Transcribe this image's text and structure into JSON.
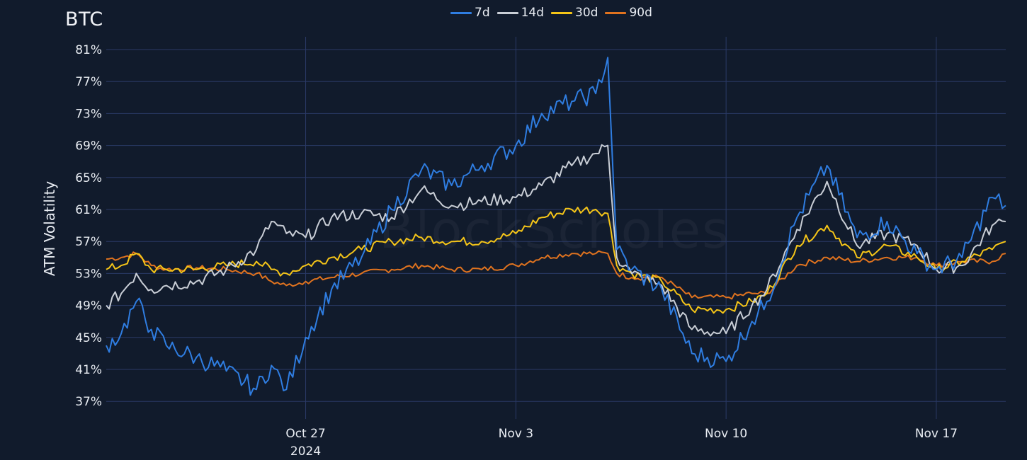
{
  "header": {
    "title": "BTC"
  },
  "watermark": "BlockScholes",
  "legend": [
    {
      "label": "7d",
      "color": "#2f7de1"
    },
    {
      "label": "14d",
      "color": "#c9ced6"
    },
    {
      "label": "30d",
      "color": "#f5c518"
    },
    {
      "label": "90d",
      "color": "#e0731f"
    }
  ],
  "axes": {
    "ylabel": "ATM Volatility",
    "yticks": [
      "81%",
      "77%",
      "73%",
      "69%",
      "65%",
      "61%",
      "57%",
      "53%",
      "49%",
      "45%",
      "41%",
      "37%"
    ],
    "xticks": [
      {
        "label": "Oct 27",
        "sub": "2024",
        "day": 6.64
      },
      {
        "label": "Nov 3",
        "sub": "",
        "day": 13.64
      },
      {
        "label": "Nov 10",
        "sub": "",
        "day": 20.64
      },
      {
        "label": "Nov 17",
        "sub": "",
        "day": 27.64
      }
    ]
  },
  "chart_data": {
    "type": "line",
    "title": "BTC",
    "xlabel": "",
    "ylabel": "ATM Volatility",
    "ylim": [
      35,
      82
    ],
    "y_tick_values": [
      81,
      77,
      73,
      69,
      65,
      61,
      57,
      53,
      49,
      45,
      41,
      37
    ],
    "x_range_days": [
      0,
      29.95
    ],
    "x_origin": "2024-10-20 ~08:00 (day 0)",
    "x_tick_labels": [
      "Oct 27 2024",
      "Nov 3",
      "Nov 10",
      "Nov 17"
    ],
    "grid": true,
    "legend_position": "top-center",
    "x": [
      0,
      0.5,
      1.0,
      1.5,
      2.0,
      3.0,
      4.0,
      5.0,
      5.5,
      6.0,
      6.64,
      7.5,
      8.5,
      9.5,
      10.5,
      11.5,
      12.5,
      13.64,
      14.5,
      15.5,
      16.3,
      16.7,
      17.0,
      17.5,
      18.5,
      19.5,
      20.64,
      21.5,
      22.0,
      23.0,
      24.0,
      25.0,
      26.0,
      27.0,
      27.64,
      28.5,
      29.5,
      29.95
    ],
    "series": [
      {
        "name": "7d",
        "values": [
          44.0,
          45.5,
          49.5,
          46.0,
          44.0,
          42.5,
          40.8,
          38.5,
          41.5,
          38.5,
          45.0,
          51.0,
          55.0,
          61.0,
          66.0,
          64.0,
          66.5,
          69.0,
          73.0,
          74.5,
          75.5,
          80.0,
          56.0,
          53.5,
          51.0,
          43.0,
          42.0,
          47.0,
          49.5,
          60.0,
          66.5,
          57.5,
          59.5,
          55.5,
          53.5,
          55.0,
          62.5,
          61.5
        ]
      },
      {
        "name": "14d",
        "values": [
          49.0,
          50.5,
          53.0,
          51.0,
          51.5,
          52.0,
          53.5,
          56.0,
          59.5,
          58.0,
          57.5,
          60.0,
          60.5,
          60.0,
          63.5,
          61.5,
          62.0,
          62.5,
          64.0,
          66.5,
          68.0,
          69.0,
          55.0,
          53.0,
          51.5,
          46.0,
          45.5,
          49.0,
          51.0,
          58.5,
          64.5,
          56.5,
          58.0,
          56.5,
          53.5,
          54.0,
          59.0,
          59.5
        ]
      },
      {
        "name": "30d",
        "values": [
          53.5,
          54.0,
          55.5,
          53.5,
          53.5,
          53.5,
          54.0,
          54.5,
          53.5,
          53.0,
          54.0,
          55.0,
          56.0,
          57.0,
          57.5,
          57.0,
          57.0,
          58.0,
          60.0,
          61.0,
          61.0,
          60.5,
          54.0,
          53.0,
          52.0,
          48.5,
          48.5,
          49.5,
          50.5,
          56.5,
          59.0,
          55.0,
          56.5,
          55.0,
          53.5,
          54.5,
          56.0,
          57.0
        ]
      },
      {
        "name": "90d",
        "values": [
          54.8,
          55.0,
          55.5,
          54.0,
          53.5,
          53.7,
          53.5,
          53.0,
          52.0,
          51.5,
          52.0,
          52.5,
          53.0,
          53.5,
          54.0,
          53.5,
          53.5,
          54.0,
          55.0,
          55.5,
          55.5,
          55.5,
          53.0,
          52.5,
          52.5,
          50.0,
          50.0,
          50.5,
          50.5,
          54.0,
          55.0,
          54.5,
          55.0,
          55.0,
          54.0,
          54.5,
          54.5,
          55.5
        ]
      }
    ]
  }
}
